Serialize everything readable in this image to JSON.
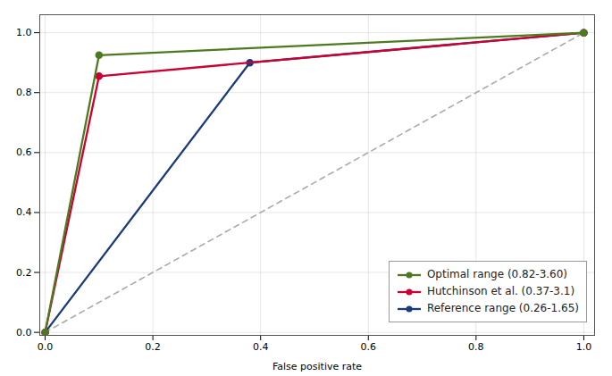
{
  "chart_data": {
    "type": "line",
    "xlabel": "False positive rate",
    "xlim": [
      -0.01,
      1.02
    ],
    "ylim": [
      -0.01,
      1.06
    ],
    "xticks": [
      {
        "value": 0.0,
        "label": "0.0"
      },
      0.2,
      0.4,
      0.6,
      0.8,
      {
        "value": 1.0,
        "label": "1.0"
      }
    ],
    "yticks": [
      {
        "value": 0.0,
        "label": "0.0"
      },
      0.2,
      0.4,
      0.6,
      0.8,
      {
        "value": 1.0,
        "label": "1.0"
      }
    ],
    "grid": true,
    "legend": "lower right",
    "series": [
      {
        "name": "Optimal range (0.82-3.60)",
        "color": "#4d7a1f",
        "marker": "circle",
        "line_style": "solid",
        "x": [
          0.0,
          0.1,
          1.0
        ],
        "values": [
          0.0,
          0.925,
          1.0
        ]
      },
      {
        "name": "Hutchinson et al. (0.37-3.1)",
        "color": "#cc0033",
        "marker": "circle",
        "line_style": "solid",
        "x": [
          0.0,
          0.1,
          1.0
        ],
        "values": [
          0.0,
          0.855,
          1.0
        ]
      },
      {
        "name": "Reference range (0.26-1.65)",
        "color": "#1a3a7a",
        "marker": "circle",
        "line_style": "solid",
        "x": [
          0.0,
          0.38,
          1.0
        ],
        "values": [
          0.0,
          0.9,
          1.0
        ]
      },
      {
        "color": "#aaaaaa",
        "line_style": "dashed",
        "x": [
          0.0,
          1.0
        ],
        "values": [
          0.0,
          1.0
        ]
      }
    ]
  }
}
